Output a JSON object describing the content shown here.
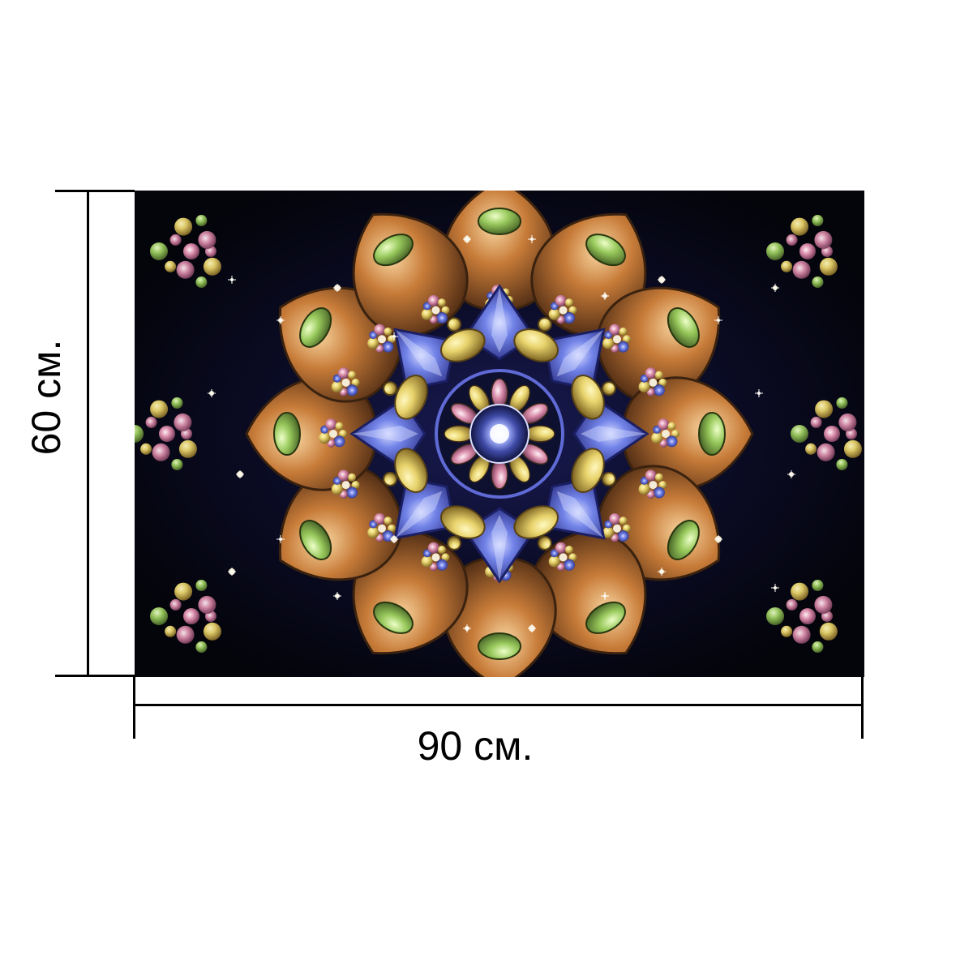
{
  "product": {
    "image_label": "kaleidoscope-fractal-print",
    "palette": {
      "background": "#05050f",
      "blue": "#6f7ee8",
      "blue_deep": "#2c2f82",
      "gold": "#e5d36d",
      "orange": "#c77b38",
      "green": "#98c95c",
      "pink": "#d88aa8",
      "cream": "#f4ecd6"
    }
  },
  "dimensions": {
    "width_label": "90 см.",
    "height_label": "60 см."
  }
}
